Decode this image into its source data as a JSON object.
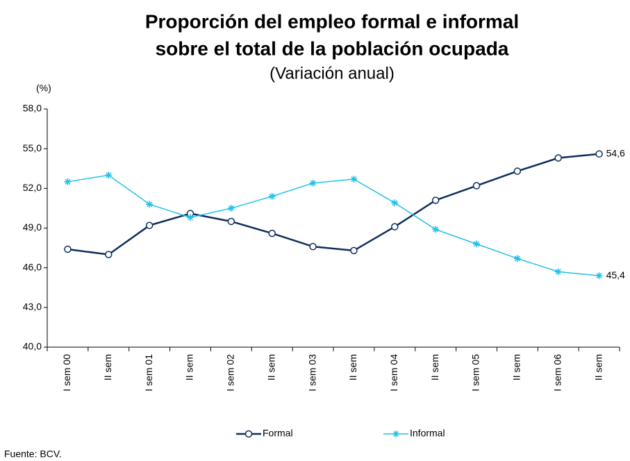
{
  "chart_data": {
    "type": "line",
    "title": "Proporción del empleo formal e informal",
    "title_line2": "sobre el total de la población ocupada",
    "subtitle": "(Variación anual)",
    "ylabel": "(%)",
    "source": "Fuente: BCV.",
    "categories": [
      "I sem 00",
      "II sem",
      "I sem 01",
      "II sem",
      "I sem 02",
      "II sem",
      "I sem 03",
      "II sem",
      "I sem 04",
      "II sem",
      "I sem 05",
      "II sem",
      "I sem 06",
      "II sem"
    ],
    "series": [
      {
        "name": "Formal",
        "color": "#0d2d5c",
        "marker": "circle",
        "values": [
          47.4,
          47.0,
          49.2,
          50.1,
          49.5,
          48.6,
          47.6,
          47.3,
          49.1,
          51.1,
          52.2,
          53.3,
          54.3,
          54.6
        ],
        "value_labels": [
          null,
          null,
          null,
          null,
          null,
          null,
          null,
          null,
          null,
          null,
          null,
          null,
          null,
          "54,6"
        ]
      },
      {
        "name": "Informal",
        "color": "#1fc1e8",
        "marker": "star",
        "values": [
          52.5,
          53.0,
          50.8,
          49.8,
          50.5,
          51.4,
          52.4,
          52.7,
          50.9,
          48.9,
          47.8,
          46.7,
          45.7,
          45.4
        ],
        "value_labels": [
          null,
          null,
          null,
          null,
          null,
          null,
          null,
          null,
          null,
          null,
          null,
          null,
          null,
          "45,4"
        ]
      }
    ],
    "ylim": [
      40,
      58
    ],
    "yticks": [
      {
        "value": 40,
        "label": "40,0"
      },
      {
        "value": 43,
        "label": "43,0"
      },
      {
        "value": 46,
        "label": "46,0"
      },
      {
        "value": 49,
        "label": "49,0"
      },
      {
        "value": 52,
        "label": "52,0"
      },
      {
        "value": 55,
        "label": "55,0"
      },
      {
        "value": 58,
        "label": "58,0"
      }
    ],
    "grid": false,
    "legend": "bottom"
  }
}
